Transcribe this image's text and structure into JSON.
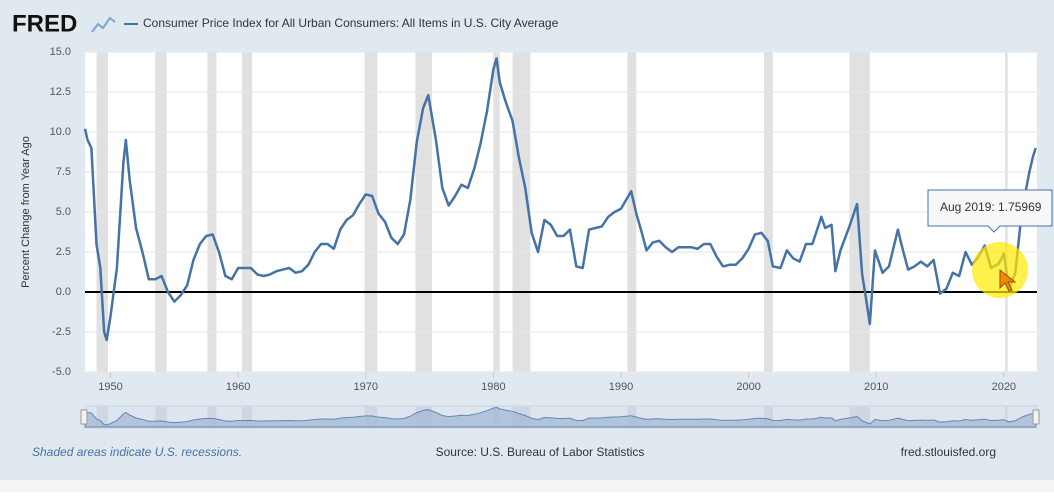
{
  "chart_data": {
    "type": "line",
    "logo": "FRED",
    "title": "Consumer Price Index for All Urban Consumers: All Items in U.S. City Average",
    "y_label": "Percent Change from Year Ago",
    "xlim": [
      1948,
      2022.6
    ],
    "xticks": [
      1950,
      1960,
      1970,
      1980,
      1990,
      2000,
      2010,
      2020
    ],
    "ylim": [
      -5,
      15
    ],
    "yticks": [
      {
        "value": -5,
        "label": "-5.0"
      },
      {
        "value": -2.5,
        "label": "-2.5"
      },
      {
        "value": 0,
        "label": "0.0"
      },
      {
        "value": 2.5,
        "label": "2.5"
      },
      {
        "value": 5,
        "label": "5.0"
      },
      {
        "value": 7.5,
        "label": "7.5"
      },
      {
        "value": 10,
        "label": "10.0"
      },
      {
        "value": 12.5,
        "label": "12.5"
      },
      {
        "value": 15,
        "label": "15.0"
      }
    ],
    "grid": true,
    "recessions": [
      [
        1948.9,
        1949.8
      ],
      [
        1953.5,
        1954.4
      ],
      [
        1957.6,
        1958.3
      ],
      [
        1960.3,
        1961.1
      ],
      [
        1969.9,
        1970.9
      ],
      [
        1973.9,
        1975.2
      ],
      [
        1980.0,
        1980.5
      ],
      [
        1981.5,
        1982.9
      ],
      [
        1990.5,
        1991.2
      ],
      [
        2001.2,
        2001.9
      ],
      [
        2007.9,
        2009.5
      ],
      [
        2020.1,
        2020.3
      ]
    ],
    "series": [
      {
        "name": "Consumer Price Index for All Urban Consumers: All Items in U.S. City Average",
        "color": "#4572a7",
        "x": [
          1948.0,
          1948.2,
          1948.5,
          1948.9,
          1949.2,
          1949.5,
          1949.7,
          1950.0,
          1950.5,
          1951.0,
          1951.2,
          1951.5,
          1952.0,
          1952.5,
          1953.0,
          1953.5,
          1954.0,
          1954.5,
          1955.0,
          1955.5,
          1956.0,
          1956.5,
          1957.0,
          1957.5,
          1958.0,
          1958.5,
          1959.0,
          1959.5,
          1960.0,
          1960.5,
          1961.0,
          1961.5,
          1962.0,
          1962.5,
          1963.0,
          1963.5,
          1964.0,
          1964.5,
          1965.0,
          1965.5,
          1966.0,
          1966.5,
          1967.0,
          1967.5,
          1968.0,
          1968.5,
          1969.0,
          1969.5,
          1970.0,
          1970.5,
          1971.0,
          1971.5,
          1972.0,
          1972.5,
          1973.0,
          1973.5,
          1974.0,
          1974.5,
          1974.9,
          1975.5,
          1976.0,
          1976.5,
          1977.0,
          1977.5,
          1978.0,
          1978.5,
          1979.0,
          1979.5,
          1980.0,
          1980.25,
          1980.5,
          1981.0,
          1981.5,
          1982.0,
          1982.5,
          1983.0,
          1983.5,
          1984.0,
          1984.5,
          1985.0,
          1985.5,
          1986.0,
          1986.5,
          1987.0,
          1987.5,
          1988.0,
          1988.5,
          1989.0,
          1989.5,
          1990.0,
          1990.8,
          1991.2,
          1991.6,
          1992.0,
          1992.5,
          1993.0,
          1993.5,
          1994.0,
          1994.5,
          1995.0,
          1995.5,
          1996.0,
          1996.5,
          1997.0,
          1997.5,
          1998.0,
          1998.5,
          1999.0,
          1999.5,
          2000.0,
          2000.5,
          2001.0,
          2001.5,
          2001.9,
          2002.5,
          2003.0,
          2003.5,
          2004.0,
          2004.5,
          2005.0,
          2005.7,
          2006.0,
          2006.5,
          2006.8,
          2007.2,
          2007.9,
          2008.5,
          2008.9,
          2009.2,
          2009.5,
          2009.9,
          2010.5,
          2011.0,
          2011.7,
          2012.0,
          2012.5,
          2013.0,
          2013.5,
          2014.0,
          2014.5,
          2015.0,
          2015.5,
          2016.0,
          2016.5,
          2017.0,
          2017.5,
          2018.0,
          2018.5,
          2019.0,
          2019.6,
          2020.0,
          2020.4,
          2020.9,
          2021.3,
          2021.5,
          2022.0,
          2022.3,
          2022.5
        ],
        "values": [
          10.2,
          9.5,
          9.0,
          3.0,
          1.5,
          -2.5,
          -3.0,
          -1.5,
          1.5,
          8.0,
          9.5,
          7.0,
          4.0,
          2.5,
          0.8,
          0.8,
          1.0,
          0.0,
          -0.6,
          -0.2,
          0.4,
          2.0,
          3.0,
          3.5,
          3.6,
          2.5,
          1.0,
          0.8,
          1.5,
          1.5,
          1.5,
          1.1,
          1.0,
          1.1,
          1.3,
          1.4,
          1.5,
          1.2,
          1.3,
          1.7,
          2.5,
          3.0,
          3.0,
          2.7,
          3.9,
          4.5,
          4.8,
          5.5,
          6.1,
          6.0,
          4.9,
          4.4,
          3.4,
          3.0,
          3.6,
          5.8,
          9.4,
          11.5,
          12.3,
          9.5,
          6.5,
          5.4,
          6.0,
          6.7,
          6.5,
          7.7,
          9.3,
          11.3,
          13.9,
          14.6,
          13.1,
          11.8,
          10.7,
          8.4,
          6.5,
          3.7,
          2.5,
          4.5,
          4.2,
          3.5,
          3.5,
          3.9,
          1.6,
          1.5,
          3.9,
          4.0,
          4.1,
          4.7,
          5.0,
          5.2,
          6.3,
          4.9,
          3.8,
          2.6,
          3.1,
          3.2,
          2.8,
          2.5,
          2.8,
          2.8,
          2.8,
          2.7,
          3.0,
          3.0,
          2.2,
          1.6,
          1.7,
          1.7,
          2.1,
          2.7,
          3.6,
          3.7,
          3.2,
          1.6,
          1.5,
          2.6,
          2.1,
          1.9,
          3.0,
          3.0,
          4.7,
          4.0,
          4.2,
          1.3,
          2.6,
          4.1,
          5.5,
          1.1,
          -0.4,
          -2.0,
          2.6,
          1.2,
          1.6,
          3.9,
          2.9,
          1.4,
          1.6,
          1.9,
          1.6,
          2.0,
          -0.1,
          0.2,
          1.2,
          1.0,
          2.5,
          1.7,
          2.2,
          2.9,
          1.5,
          1.76,
          2.4,
          0.2,
          1.2,
          4.2,
          5.4,
          7.5,
          8.5,
          9.0
        ]
      }
    ],
    "tooltip": "Aug 2019: 1.75969",
    "footer_note": "Shaded areas indicate U.S. recessions.",
    "source": "Source: U.S. Bureau of Labor Statistics",
    "site": "fred.stlouisfed.org"
  }
}
